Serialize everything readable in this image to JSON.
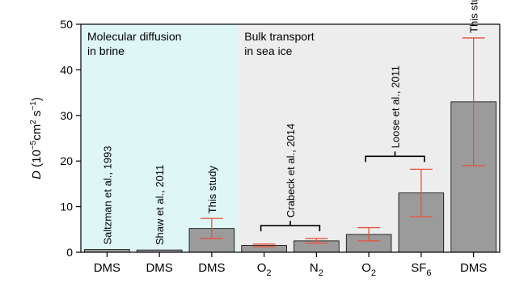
{
  "chart_data": {
    "type": "bar",
    "ylabel": {
      "symbol": "D",
      "open": "(10",
      "exp1": "−5",
      "unit1": "cm",
      "exp2": "2",
      "unit2": " s",
      "exp3": "−1",
      "close": ")"
    },
    "ylim": [
      0,
      50
    ],
    "yticks": [
      0,
      10,
      20,
      30,
      40,
      50
    ],
    "categories": [
      {
        "base": "DMS",
        "sub": ""
      },
      {
        "base": "DMS",
        "sub": ""
      },
      {
        "base": "DMS",
        "sub": ""
      },
      {
        "base": "O",
        "sub": "2"
      },
      {
        "base": "N",
        "sub": "2"
      },
      {
        "base": "O",
        "sub": "2"
      },
      {
        "base": "SF",
        "sub": "6"
      },
      {
        "base": "DMS",
        "sub": ""
      }
    ],
    "values": [
      0.6,
      0.5,
      5.2,
      1.5,
      2.5,
      3.9,
      13.0,
      33.0
    ],
    "error_low": [
      null,
      null,
      3.0,
      1.2,
      2.0,
      2.5,
      7.8,
      19.0
    ],
    "error_high": [
      null,
      null,
      7.4,
      1.8,
      3.0,
      5.4,
      18.2,
      47.0
    ],
    "regions": [
      {
        "label_lines": [
          "Molecular diffusion",
          "in brine"
        ],
        "from": 0,
        "to": 2,
        "color": "#dff6f6"
      },
      {
        "label_lines": [
          "Bulk transport",
          "in sea ice"
        ],
        "from": 3,
        "to": 7,
        "color": "#ededed"
      }
    ],
    "annotations": [
      {
        "text": "Saltzman et al., 1993",
        "group": [
          0,
          0
        ],
        "bracket": false
      },
      {
        "text": "Shaw et al.,  2011",
        "group": [
          1,
          1
        ],
        "bracket": false
      },
      {
        "text": "This study",
        "group": [
          2,
          2
        ],
        "bracket": false
      },
      {
        "text": "Crabeck et al., 2014",
        "group": [
          3,
          4
        ],
        "bracket": true
      },
      {
        "text": "Loose et al., 2011",
        "group": [
          5,
          6
        ],
        "bracket": true
      },
      {
        "text": "This study",
        "group": [
          7,
          7
        ],
        "bracket": false
      }
    ],
    "colors": {
      "bar": "#9b9b9b",
      "error": "#e8513a",
      "axis": "#000000"
    }
  }
}
